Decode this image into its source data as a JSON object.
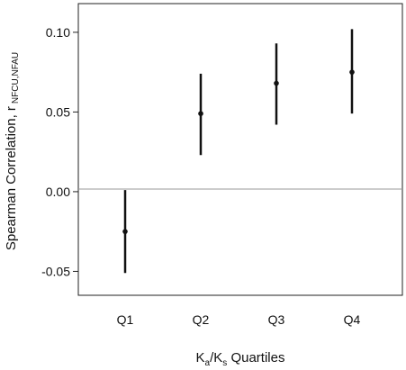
{
  "chart_data": {
    "type": "errorbar",
    "title": "",
    "xlabel": {
      "main": "K",
      "sub1": "a",
      "sep": "/K",
      "sub2": "s",
      "rest": " Quartiles"
    },
    "ylabel": {
      "main": "Spearman Correlation, r",
      "sub": "NFCU,NFAU"
    },
    "categories": [
      "Q1",
      "Q2",
      "Q3",
      "Q4"
    ],
    "series": [
      {
        "values": [
          -0.025,
          0.049,
          0.068,
          0.075
        ],
        "lower": [
          -0.051,
          0.023,
          0.042,
          0.049
        ],
        "upper": [
          0.001,
          0.074,
          0.093,
          0.102
        ]
      }
    ],
    "ylim": [
      -0.065,
      0.118
    ],
    "yticks": [
      -0.05,
      0.0,
      0.05,
      0.1
    ],
    "ytick_labels": [
      "-0.05",
      "0.00",
      "0.05",
      "0.10"
    ],
    "reference_line": 0,
    "grid": false,
    "legend": "none",
    "colors": {
      "marker": "#111111",
      "errorbar": "#111111",
      "reference_line": "#999999",
      "frame": "#222222"
    }
  }
}
